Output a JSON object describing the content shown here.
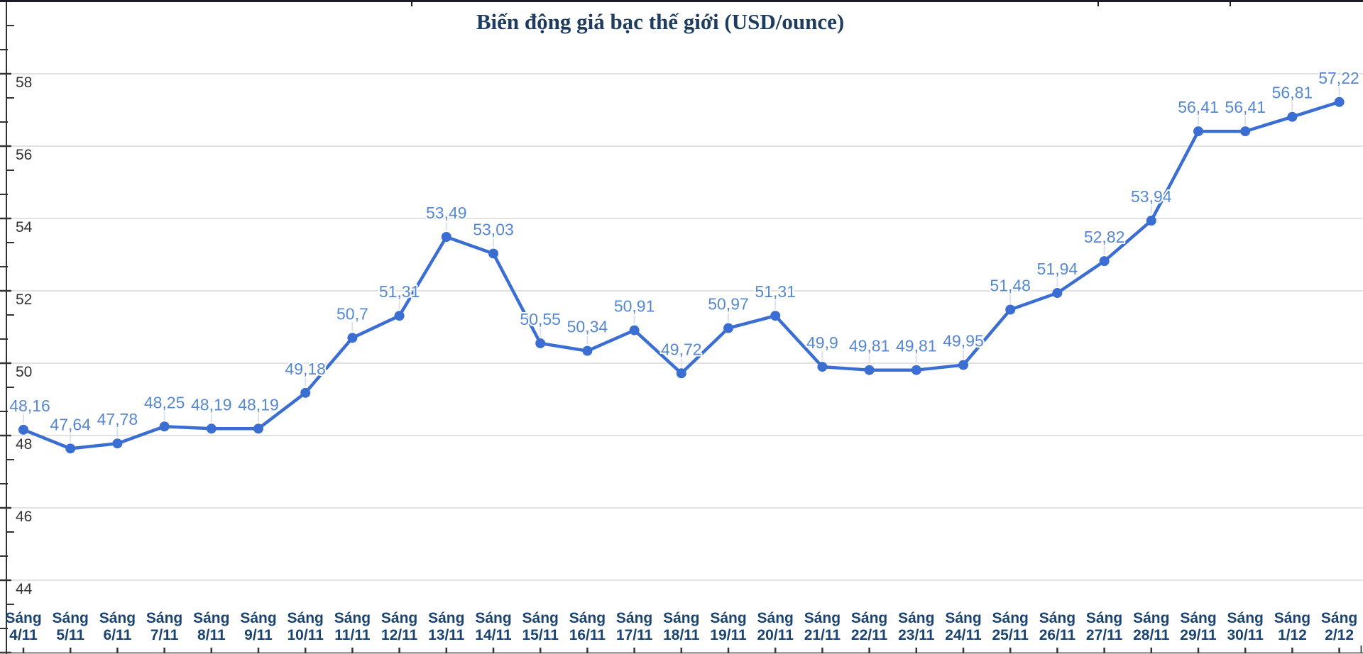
{
  "chart_data": {
    "type": "line",
    "title": "Biến động giá bạc thế giới (USD/ounce)",
    "x_label_prefix": "Sáng",
    "dates": [
      "4/11",
      "5/11",
      "6/11",
      "7/11",
      "8/11",
      "9/11",
      "10/11",
      "11/11",
      "12/11",
      "13/11",
      "14/11",
      "15/11",
      "16/11",
      "17/11",
      "18/11",
      "19/11",
      "20/11",
      "21/11",
      "22/11",
      "23/11",
      "24/11",
      "25/11",
      "26/11",
      "27/11",
      "28/11",
      "29/11",
      "30/11",
      "1/12",
      "2/12"
    ],
    "values": [
      48.16,
      47.64,
      47.78,
      48.25,
      48.19,
      48.19,
      49.18,
      50.7,
      51.31,
      53.49,
      53.03,
      50.55,
      50.34,
      50.91,
      49.72,
      50.97,
      51.31,
      49.9,
      49.81,
      49.81,
      49.95,
      51.48,
      51.94,
      52.82,
      53.94,
      56.41,
      56.41,
      56.81,
      57.22
    ],
    "point_labels": [
      "48,16",
      "47,64",
      "47,78",
      "48,25",
      "48,19",
      "48,19",
      "49,18",
      "50,7",
      "51,31",
      "53,49",
      "53,03",
      "50,55",
      "50,34",
      "50,91",
      "49,72",
      "50,97",
      "51,31",
      "49,9",
      "49,81",
      "49,81",
      "49,95",
      "51,48",
      "51,94",
      "52,82",
      "53,94",
      "56,41",
      "56,41",
      "56,81",
      "57,22"
    ],
    "y_ticks": [
      58,
      56,
      54,
      52,
      50,
      48,
      46,
      44
    ],
    "y_axis_range_shown": [
      44,
      58
    ],
    "grid": true,
    "legend_position": "none",
    "colors": {
      "series_line": "#3b6ed2",
      "marker": "#3b6ed2",
      "data_label": "#5688d2",
      "leader_line": "#dde1ea",
      "gridline": "#d8d8d8",
      "y_tick_label": "#333333",
      "x_tick_label": "#1b4470",
      "title": "#1e3c5f",
      "axis": "#333333",
      "top_border": "#1c1c26",
      "background": "#ffffff"
    }
  }
}
